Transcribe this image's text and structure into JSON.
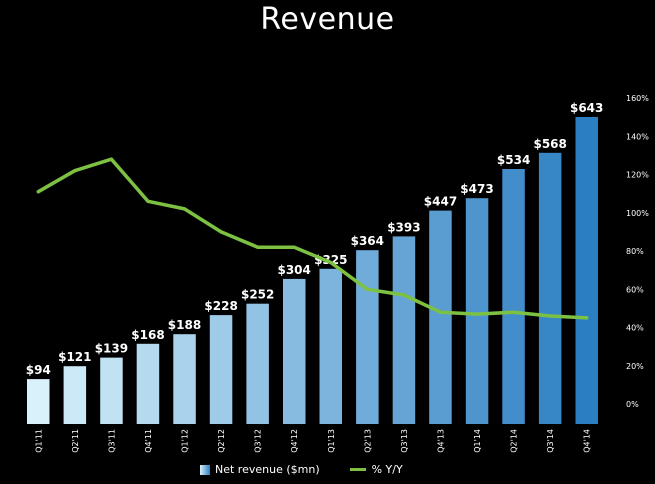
{
  "chart_data": {
    "type": "bar",
    "title": "Revenue",
    "categories": [
      "Q1'11",
      "Q2'11",
      "Q3'11",
      "Q4'11",
      "Q1'12",
      "Q2'12",
      "Q3'12",
      "Q4'12",
      "Q1'13",
      "Q2'13",
      "Q3'13",
      "Q4'13",
      "Q1'14",
      "Q2'14",
      "Q3'14",
      "Q4'14"
    ],
    "series": [
      {
        "name": "Net revenue ($mn)",
        "type": "bar",
        "axis": "left",
        "values": [
          94,
          121,
          139,
          168,
          188,
          228,
          252,
          304,
          325,
          364,
          393,
          447,
          473,
          534,
          568,
          643
        ],
        "labels": [
          "$94",
          "$121",
          "$139",
          "$168",
          "$188",
          "$228",
          "$252",
          "$304",
          "$325",
          "$364",
          "$393",
          "$447",
          "$473",
          "$534",
          "$568",
          "$643"
        ]
      },
      {
        "name": "% Y/Y",
        "type": "line",
        "axis": "right",
        "values": [
          111,
          122,
          128,
          106,
          102,
          90,
          82,
          82,
          74,
          60,
          57,
          48,
          47,
          48,
          46,
          45
        ]
      }
    ],
    "y2_ticks": [
      "0%",
      "20%",
      "40%",
      "60%",
      "80%",
      "100%",
      "120%",
      "140%",
      "160%"
    ],
    "y2_tick_values": [
      0,
      20,
      40,
      60,
      80,
      100,
      120,
      140,
      160
    ],
    "ylim": [
      0,
      660
    ],
    "y2lim": [
      -10,
      170
    ],
    "legend_position": "bottom",
    "colors": {
      "bar_start": "#d8f1fb",
      "bar_end": "#2b7ec2",
      "line": "#7dc142",
      "background": "#000000"
    }
  }
}
